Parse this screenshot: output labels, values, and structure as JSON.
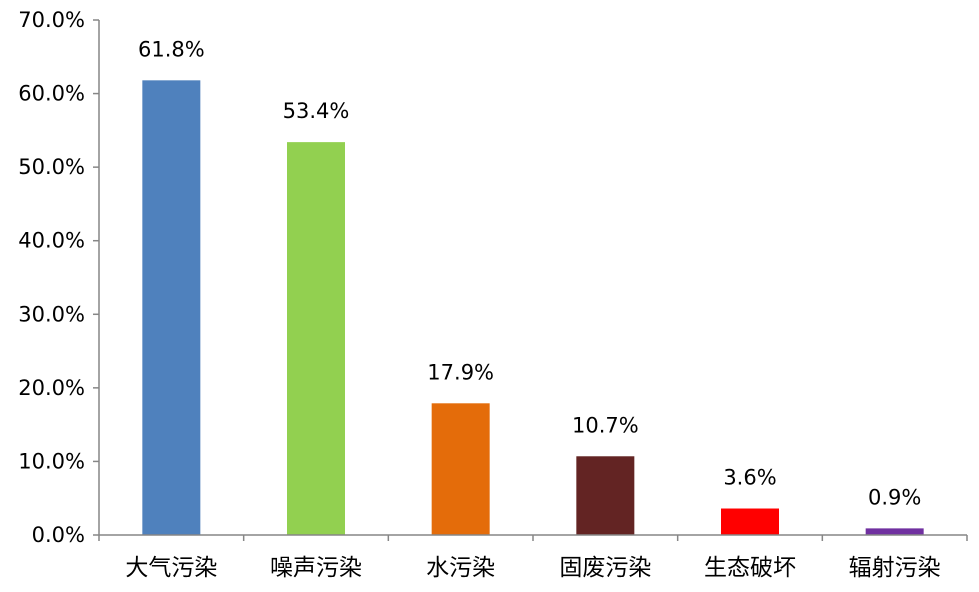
{
  "chart_data": {
    "type": "bar",
    "title": "",
    "xlabel": "",
    "ylabel": "",
    "ylim": [
      0,
      70
    ],
    "ytick_values": [
      0,
      10,
      20,
      30,
      40,
      50,
      60,
      70
    ],
    "yticks": [
      "0.0%",
      "10.0%",
      "20.0%",
      "30.0%",
      "40.0%",
      "50.0%",
      "60.0%",
      "70.0%"
    ],
    "categories": [
      "大气污染",
      "噪声污染",
      "水污染",
      "固废污染",
      "生态破坏",
      "辐射污染"
    ],
    "values": [
      61.8,
      53.4,
      17.9,
      10.7,
      3.6,
      0.9
    ],
    "data_labels": [
      "61.8%",
      "53.4%",
      "17.9%",
      "10.7%",
      "3.6%",
      "0.9%"
    ],
    "colors": [
      "#4F81BD",
      "#92D050",
      "#E46C0A",
      "#632423",
      "#FF0000",
      "#7030A0"
    ],
    "grid": false,
    "legend": "none"
  }
}
